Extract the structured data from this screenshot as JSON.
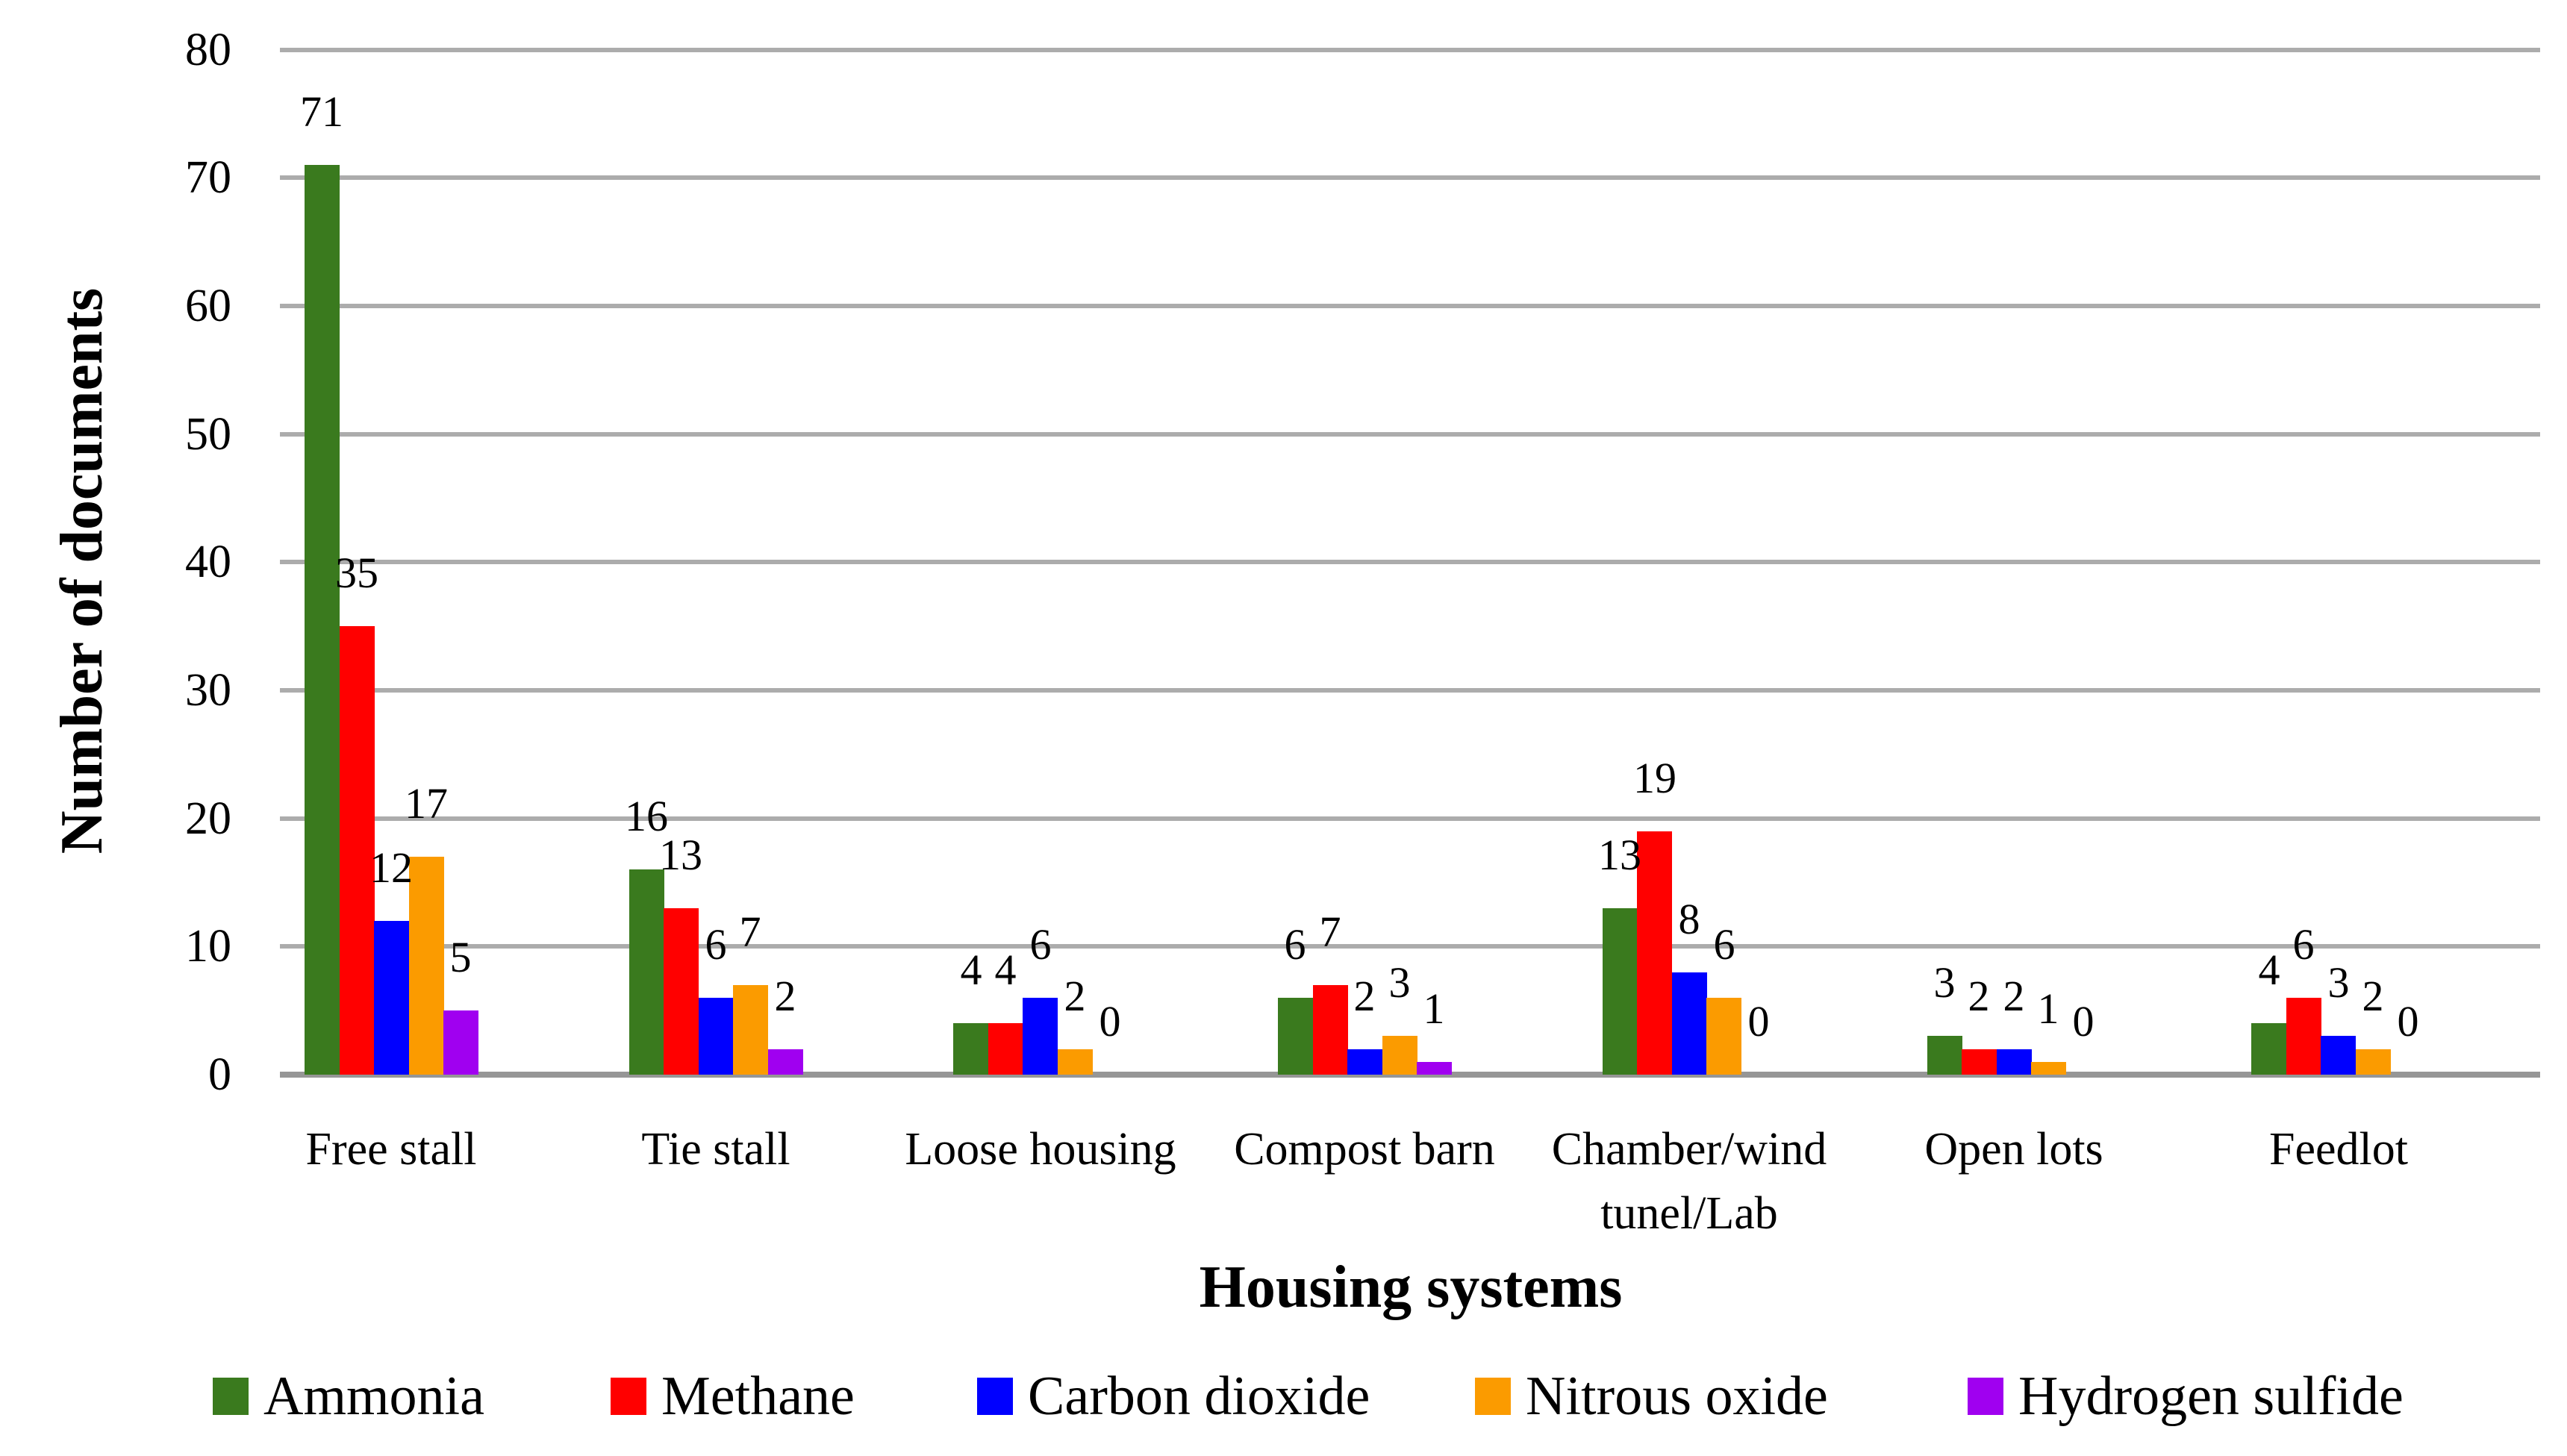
{
  "chart_data": {
    "type": "bar",
    "xlabel": "Housing systems",
    "ylabel": "Number of documents",
    "categories": [
      "Free stall",
      "Tie stall",
      "Loose housing",
      "Compost barn",
      "Chamber/wind tunel/Lab",
      "Open lots",
      "Feedlot"
    ],
    "series": [
      {
        "name": "Ammonia",
        "color": "#3A7A1E",
        "values": [
          71,
          16,
          4,
          6,
          13,
          3,
          4
        ]
      },
      {
        "name": "Methane",
        "color": "#FF0000",
        "values": [
          35,
          13,
          4,
          7,
          19,
          2,
          6
        ]
      },
      {
        "name": "Carbon dioxide",
        "color": "#0000FF",
        "values": [
          12,
          6,
          6,
          2,
          8,
          2,
          3
        ]
      },
      {
        "name": "Nitrous oxide",
        "color": "#FB9B00",
        "values": [
          17,
          7,
          2,
          3,
          6,
          1,
          2
        ]
      },
      {
        "name": "Hydrogen sulfide",
        "color": "#A000F0",
        "values": [
          5,
          2,
          0,
          1,
          0,
          0,
          0
        ]
      }
    ],
    "ylim": [
      0,
      80
    ],
    "yticks": [
      0,
      10,
      20,
      30,
      40,
      50,
      60,
      70,
      80
    ],
    "grid": "horizontal",
    "legend_position": "bottom",
    "data_labels": "outside-end",
    "colors": {
      "gridline": "#ACACAC",
      "axis_line": "#969696",
      "text": "#000000",
      "background": "#FFFFFF"
    }
  }
}
